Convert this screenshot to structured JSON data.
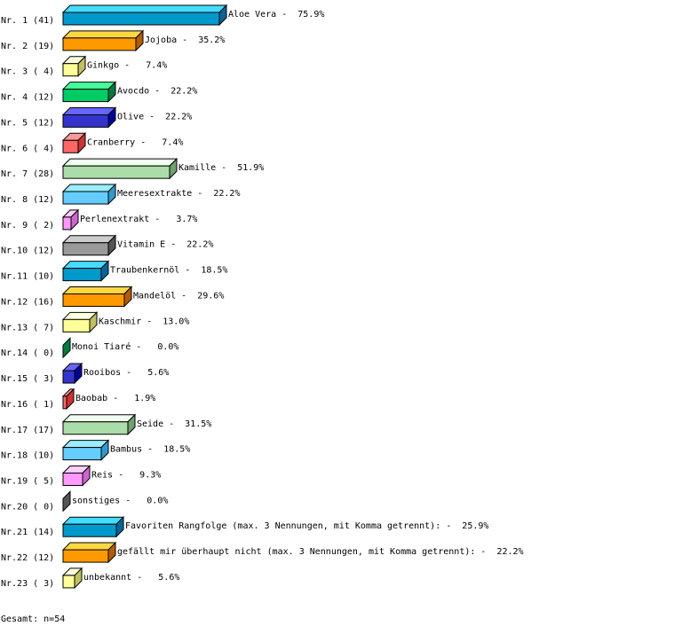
{
  "chart_data": {
    "type": "bar",
    "orientation": "horizontal",
    "style": "3d",
    "xlim": [
      0,
      100
    ],
    "categories": [
      "Aloe Vera",
      "Jojoba",
      "Ginkgo",
      "Avocdo",
      "Olive",
      "Cranberry",
      "Kamille",
      "Meeresextrakte",
      "Perlenextrakt",
      "Vitamin E",
      "Traubenkernöl",
      "Mandelöl",
      "Kaschmir",
      "Monoi Tiaré",
      "Rooibos",
      "Baobab",
      "Seide",
      "Bambus",
      "Reis",
      "sonstiges",
      "Favoriten Rangfolge (max. 3 Nennungen, mit Komma getrennt):",
      "gefällt mir überhaupt nicht (max. 3 Nennungen, mit Komma getrennt):",
      "unbekannt"
    ],
    "counts": [
      41,
      19,
      4,
      12,
      12,
      4,
      28,
      12,
      2,
      12,
      10,
      16,
      7,
      0,
      3,
      1,
      17,
      10,
      5,
      0,
      14,
      12,
      3
    ],
    "values": [
      75.9,
      35.2,
      7.4,
      22.2,
      22.2,
      7.4,
      51.9,
      22.2,
      3.7,
      22.2,
      18.5,
      29.6,
      13.0,
      0.0,
      5.6,
      1.9,
      31.5,
      18.5,
      9.3,
      0.0,
      25.9,
      22.2,
      5.6
    ],
    "row_labels": [
      "Nr. 1 (41)",
      "Nr. 2 (19)",
      "Nr. 3 ( 4)",
      "Nr. 4 (12)",
      "Nr. 5 (12)",
      "Nr. 6 ( 4)",
      "Nr. 7 (28)",
      "Nr. 8 (12)",
      "Nr. 9 ( 2)",
      "Nr.10 (12)",
      "Nr.11 (10)",
      "Nr.12 (16)",
      "Nr.13 ( 7)",
      "Nr.14 ( 0)",
      "Nr.15 ( 3)",
      "Nr.16 ( 1)",
      "Nr.17 (17)",
      "Nr.18 (10)",
      "Nr.19 ( 5)",
      "Nr.20 ( 0)",
      "Nr.21 (14)",
      "Nr.22 (12)",
      "Nr.23 ( 3)"
    ],
    "data_labels": [
      "Aloe Vera -  75.9%",
      "Jojoba -  35.2%",
      "Ginkgo -   7.4%",
      "Avocdo -  22.2%",
      "Olive -  22.2%",
      "Cranberry -   7.4%",
      "Kamille -  51.9%",
      "Meeresextrakte -  22.2%",
      "Perlenextrakt -   3.7%",
      "Vitamin E -  22.2%",
      "Traubenkernöl -  18.5%",
      "Mandelöl -  29.6%",
      "Kaschmir -  13.0%",
      "Monoi Tiaré -   0.0%",
      "Rooibos -   5.6%",
      "Baobab -   1.9%",
      "Seide -  31.5%",
      "Bambus -  18.5%",
      "Reis -   9.3%",
      "sonstiges -   0.0%",
      "Favoriten Rangfolge (max. 3 Nennungen, mit Komma getrennt): -  25.9%",
      "gefällt mir überhaupt nicht (max. 3 Nennungen, mit Komma getrennt): -  22.2%",
      "unbekannt -   5.6%"
    ],
    "palette": [
      {
        "front": "#0099cc",
        "top": "#44ddff",
        "side": "#006699"
      },
      {
        "front": "#ff9900",
        "top": "#ffd840",
        "side": "#b35c00"
      },
      {
        "front": "#ffff99",
        "top": "#ffffdd",
        "side": "#c0c060"
      },
      {
        "front": "#00cc66",
        "top": "#44ff99",
        "side": "#007a3d"
      },
      {
        "front": "#3333cc",
        "top": "#6666ff",
        "side": "#000099"
      },
      {
        "front": "#ff6666",
        "top": "#ff9999",
        "side": "#cc3333"
      },
      {
        "front": "#aaddaa",
        "top": "#eeffee",
        "side": "#70a070"
      },
      {
        "front": "#66ccff",
        "top": "#99eeff",
        "side": "#3399cc"
      },
      {
        "front": "#ff99ff",
        "top": "#ffccff",
        "side": "#cc66cc"
      },
      {
        "front": "#999999",
        "top": "#cccccc",
        "side": "#555555"
      }
    ],
    "total_label": "Gesamt: n=54"
  }
}
